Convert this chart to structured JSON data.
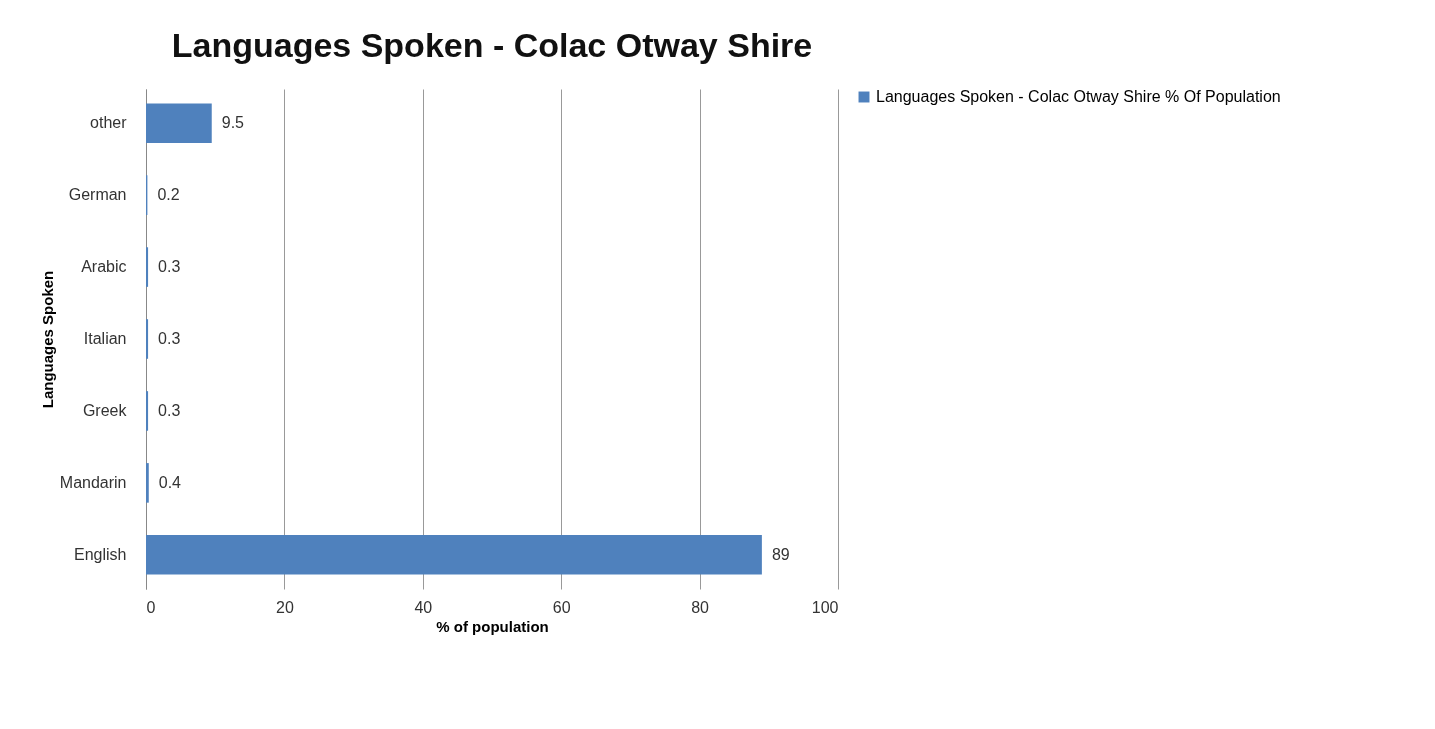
{
  "chart_data": {
    "type": "bar",
    "orientation": "horizontal",
    "title": "Languages Spoken - Colac Otway Shire",
    "xlabel": "% of population",
    "ylabel": "Languages Spoken",
    "categories": [
      "other",
      "German",
      "Arabic",
      "Italian",
      "Greek",
      "Mandarin",
      "English"
    ],
    "series": [
      {
        "name": "Languages Spoken - Colac Otway Shire % Of Population",
        "color": "#4f81bd",
        "values": [
          9.5,
          0.2,
          0.3,
          0.3,
          0.3,
          0.4,
          89
        ]
      }
    ],
    "xlim": [
      0,
      100
    ],
    "xticks": [
      0,
      20,
      40,
      60,
      80,
      100
    ],
    "grid": "x",
    "legend": "right",
    "data_labels": true
  }
}
